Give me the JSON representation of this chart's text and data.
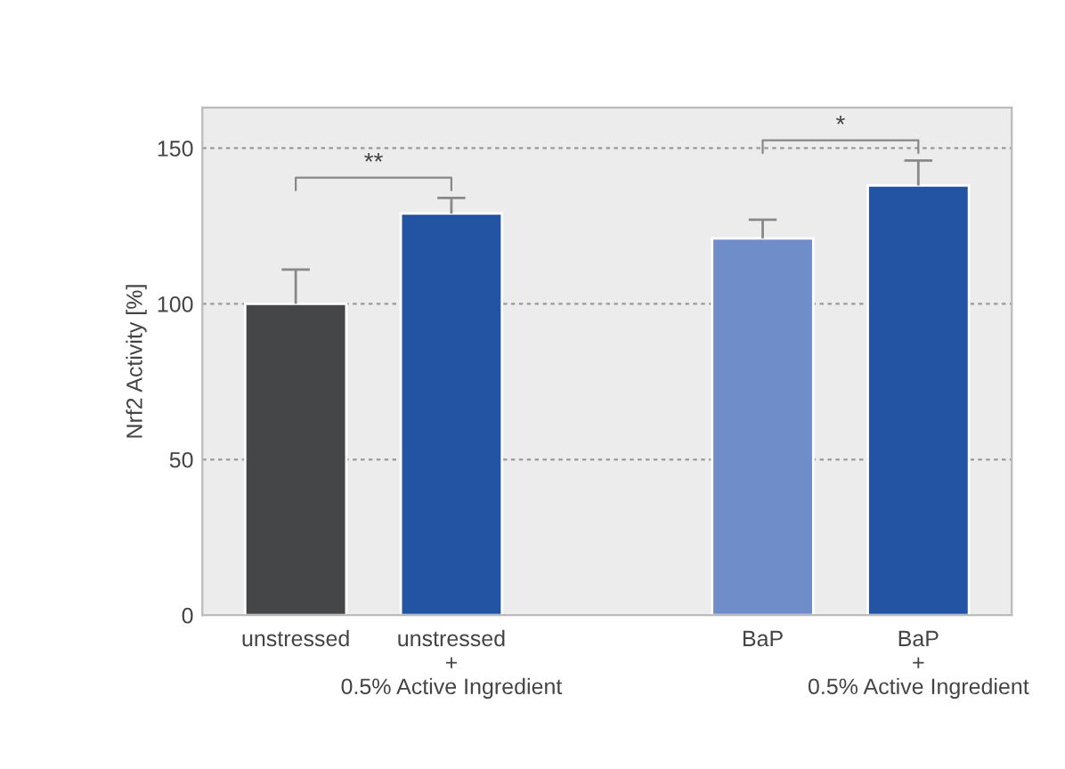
{
  "chart_data": {
    "type": "bar",
    "ylabel": "Nrf2 Activity [%]",
    "categories": [
      "unstressed",
      "unstressed\n+\n0.5% Active Ingredient",
      null,
      "BaP",
      "BaP\n+\n0.5% Active Ingredient"
    ],
    "values": [
      100,
      129,
      null,
      121,
      138
    ],
    "errors": [
      [
        100,
        111
      ],
      [
        129,
        134
      ],
      null,
      [
        121,
        127
      ],
      [
        138,
        146
      ]
    ],
    "colors": [
      "#444648",
      "#2353a3",
      "#2353a3",
      "#6e8dc9",
      "#2353a3"
    ],
    "ylim": [
      0,
      163
    ],
    "yticks": [
      0,
      50,
      100,
      150
    ],
    "grid": "y",
    "annotations": [
      "**",
      "*"
    ]
  }
}
